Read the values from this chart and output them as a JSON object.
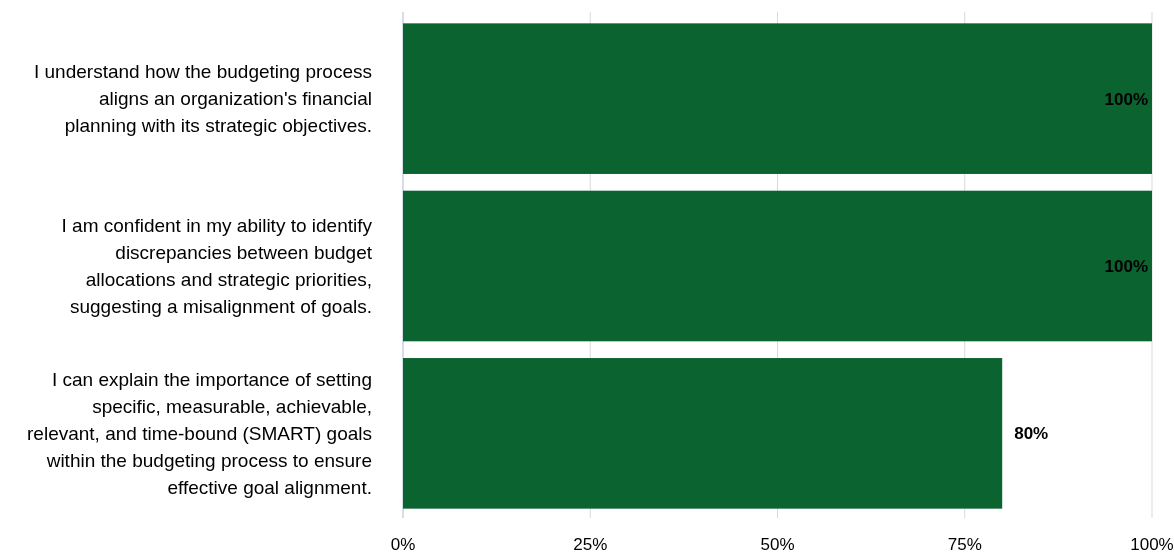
{
  "chart_data": {
    "type": "bar",
    "orientation": "horizontal",
    "categories": [
      "I understand how the budgeting process aligns an organization's financial planning with its strategic objectives.",
      "I am confident in my ability to identify discrepancies between budget allocations and strategic priorities, suggesting a misalignment of goals.",
      "I can explain the importance of setting specific, measurable, achievable, relevant, and time-bound (SMART) goals within the budgeting process to ensure effective goal alignment."
    ],
    "values": [
      100,
      100,
      80
    ],
    "value_labels": [
      "100%",
      "100%",
      "80%"
    ],
    "color": "#0b6330",
    "xlim": [
      0,
      100
    ],
    "xticks": [
      {
        "value": 0,
        "label": "0%"
      },
      {
        "value": 25,
        "label": "25%"
      },
      {
        "value": 50,
        "label": "50%"
      },
      {
        "value": 75,
        "label": "75%"
      },
      {
        "value": 100,
        "label": "100%"
      }
    ],
    "grid": "x"
  }
}
